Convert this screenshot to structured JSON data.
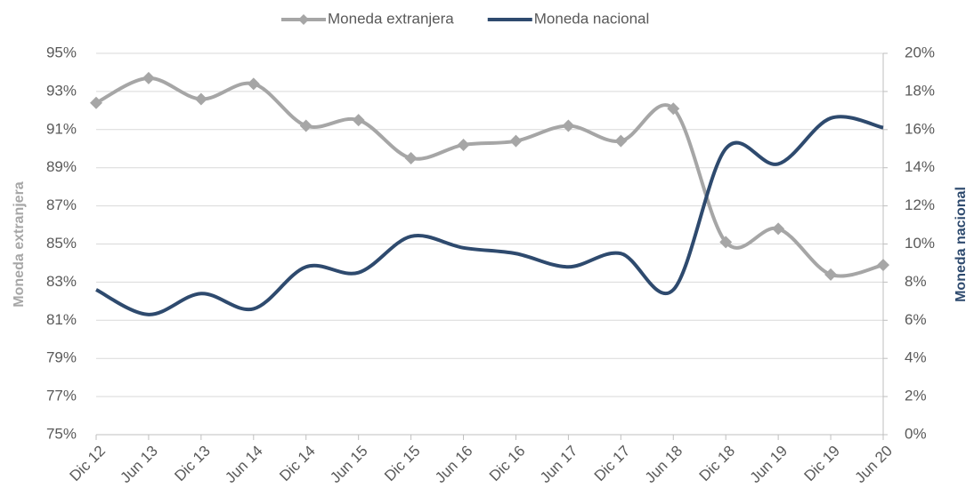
{
  "chart_data": {
    "type": "line",
    "categories": [
      "Dic 12",
      "Jun 13",
      "Dic 13",
      "Jun 14",
      "Dic 14",
      "Jun 15",
      "Dic 15",
      "Jun 16",
      "Dic 16",
      "Jun 17",
      "Dic 17",
      "Jun 18",
      "Dic 18",
      "Jun 19",
      "Dic 19",
      "Jun 20"
    ],
    "series": [
      {
        "name": "Moneda extranjera",
        "color": "#a6a6a6",
        "axis": "y",
        "marker": "diamond",
        "values": [
          92.4,
          93.7,
          92.6,
          93.4,
          91.2,
          91.5,
          89.5,
          90.2,
          90.4,
          91.2,
          90.4,
          92.1,
          85.1,
          85.8,
          83.4,
          83.9
        ]
      },
      {
        "name": "Moneda nacional",
        "color": "#2e4a6e",
        "axis": "y2",
        "values": [
          7.6,
          6.3,
          7.4,
          6.6,
          8.8,
          8.5,
          10.4,
          9.8,
          9.5,
          8.8,
          9.5,
          7.6,
          15.0,
          14.2,
          16.6,
          16.1
        ]
      }
    ],
    "ylabel": "Moneda extranjera",
    "y2label": "Moneda nacional",
    "ylim": [
      75,
      95
    ],
    "yticks": [
      {
        "value": 75,
        "label": "75%"
      },
      {
        "value": 77,
        "label": "77%"
      },
      {
        "value": 79,
        "label": "79%"
      },
      {
        "value": 81,
        "label": "81%"
      },
      {
        "value": 83,
        "label": "83%"
      },
      {
        "value": 85,
        "label": "85%"
      },
      {
        "value": 87,
        "label": "87%"
      },
      {
        "value": 89,
        "label": "89%"
      },
      {
        "value": 91,
        "label": "91%"
      },
      {
        "value": 93,
        "label": "93%"
      },
      {
        "value": 95,
        "label": "95%"
      }
    ],
    "y2lim": [
      0,
      20
    ],
    "y2ticks": [
      {
        "value": 0,
        "label": "0%"
      },
      {
        "value": 2,
        "label": "2%"
      },
      {
        "value": 4,
        "label": "4%"
      },
      {
        "value": 6,
        "label": "6%"
      },
      {
        "value": 8,
        "label": "8%"
      },
      {
        "value": 10,
        "label": "10%"
      },
      {
        "value": 12,
        "label": "12%"
      },
      {
        "value": 14,
        "label": "14%"
      },
      {
        "value": 16,
        "label": "16%"
      },
      {
        "value": 18,
        "label": "18%"
      },
      {
        "value": 20,
        "label": "20%"
      }
    ],
    "grid": true,
    "smooth": true,
    "legend": "top"
  }
}
